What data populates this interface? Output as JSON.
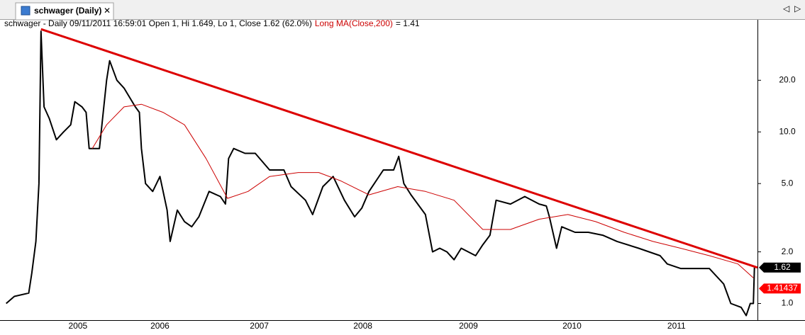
{
  "tab": {
    "title": "schwager (Daily)"
  },
  "chart_data": {
    "type": "line",
    "title": "schwager - Daily 09/11/2011 16:59:01 Open 1, Hi 1.649, Lo 1, Close 1.62 (62.0%)",
    "title_suffix": "= 1.41",
    "log_scale": true,
    "grid": false,
    "xlim": [
      2004.93,
      2012.32
    ],
    "xticks": [
      {
        "value": 2005.69,
        "label": "2005"
      },
      {
        "value": 2006.49,
        "label": "2006"
      },
      {
        "value": 2007.46,
        "label": "2007"
      },
      {
        "value": 2008.47,
        "label": "2008"
      },
      {
        "value": 2009.5,
        "label": "2009"
      },
      {
        "value": 2010.51,
        "label": "2010"
      },
      {
        "value": 2011.53,
        "label": "2011"
      }
    ],
    "ylim": [
      0.8,
      45
    ],
    "yticks": [
      {
        "value": 1,
        "label": "1.0"
      },
      {
        "value": 2,
        "label": "2.0"
      },
      {
        "value": 5,
        "label": "5.0"
      },
      {
        "value": 10,
        "label": "10.0"
      },
      {
        "value": 20,
        "label": "20.0"
      }
    ],
    "series": [
      {
        "color": "#000000",
        "width": 2,
        "last_label": "1.62",
        "label_color": "#000000",
        "x": [
          2004.99,
          2005.07,
          2005.21,
          2005.24,
          2005.28,
          2005.31,
          2005.33,
          2005.36,
          2005.41,
          2005.48,
          2005.55,
          2005.62,
          2005.66,
          2005.73,
          2005.77,
          2005.8,
          2005.83,
          2005.9,
          2005.97,
          2006.0,
          2006.07,
          2006.14,
          2006.25,
          2006.29,
          2006.31,
          2006.35,
          2006.42,
          2006.49,
          2006.56,
          2006.59,
          2006.66,
          2006.73,
          2006.8,
          2006.87,
          2006.97,
          2007.08,
          2007.13,
          2007.16,
          2007.21,
          2007.32,
          2007.42,
          2007.56,
          2007.7,
          2007.77,
          2007.91,
          2007.98,
          2008.08,
          2008.18,
          2008.29,
          2008.39,
          2008.46,
          2008.53,
          2008.67,
          2008.77,
          2008.82,
          2008.87,
          2008.94,
          2009.08,
          2009.15,
          2009.22,
          2009.29,
          2009.36,
          2009.43,
          2009.57,
          2009.64,
          2009.71,
          2009.77,
          2009.91,
          2010.05,
          2010.19,
          2010.26,
          2010.29,
          2010.36,
          2010.41,
          2010.54,
          2010.67,
          2010.81,
          2010.95,
          2011.16,
          2011.37,
          2011.44,
          2011.57,
          2011.71,
          2011.85,
          2011.99,
          2012.06,
          2012.16,
          2012.21,
          2012.25,
          2012.28,
          2012.29
        ],
        "values": [
          1.0,
          1.1,
          1.15,
          1.5,
          2.3,
          5,
          38.6,
          14,
          12,
          9,
          10,
          11,
          15,
          14,
          13,
          8,
          8,
          8,
          20,
          26,
          20,
          18,
          14,
          13,
          8,
          5,
          4.5,
          5.5,
          3.5,
          2.3,
          3.5,
          3,
          2.8,
          3.2,
          4.5,
          4.2,
          3.8,
          7,
          8,
          7.5,
          7.5,
          6,
          6,
          4.8,
          4,
          3.3,
          4.8,
          5.5,
          4,
          3.2,
          3.6,
          4.5,
          6,
          6,
          7.2,
          5,
          4.3,
          3.3,
          2,
          2.1,
          2,
          1.8,
          2.1,
          1.9,
          2.2,
          2.5,
          4,
          3.8,
          4.2,
          3.8,
          3.7,
          3.2,
          2.1,
          2.8,
          2.6,
          2.6,
          2.5,
          2.3,
          2.1,
          1.9,
          1.7,
          1.6,
          1.6,
          1.6,
          1.3,
          1.0,
          0.95,
          0.85,
          1.0,
          1.0,
          1.62
        ]
      },
      {
        "name": "Long MA(Close,200)",
        "color": "#cc0000",
        "width": 1,
        "last_label": "1.41437",
        "label_color": "#ff0000",
        "x": [
          2005.83,
          2005.97,
          2006.14,
          2006.31,
          2006.52,
          2006.73,
          2006.94,
          2007.15,
          2007.35,
          2007.56,
          2007.84,
          2008.04,
          2008.25,
          2008.53,
          2008.81,
          2009.08,
          2009.36,
          2009.64,
          2009.91,
          2010.19,
          2010.47,
          2010.74,
          2011.02,
          2011.3,
          2011.57,
          2011.85,
          2012.13,
          2012.28
        ],
        "values": [
          8,
          11,
          14,
          14.5,
          13,
          11,
          7,
          4.1,
          4.5,
          5.5,
          5.8,
          5.8,
          5.2,
          4.3,
          4.8,
          4.5,
          4,
          2.7,
          2.7,
          3.1,
          3.3,
          3.0,
          2.6,
          2.3,
          2.1,
          1.9,
          1.7,
          1.41
        ]
      },
      {
        "color": "#dd0000",
        "width": 3,
        "x": [
          2005.33,
          2012.32
        ],
        "values": [
          39.7,
          1.62
        ]
      }
    ]
  }
}
